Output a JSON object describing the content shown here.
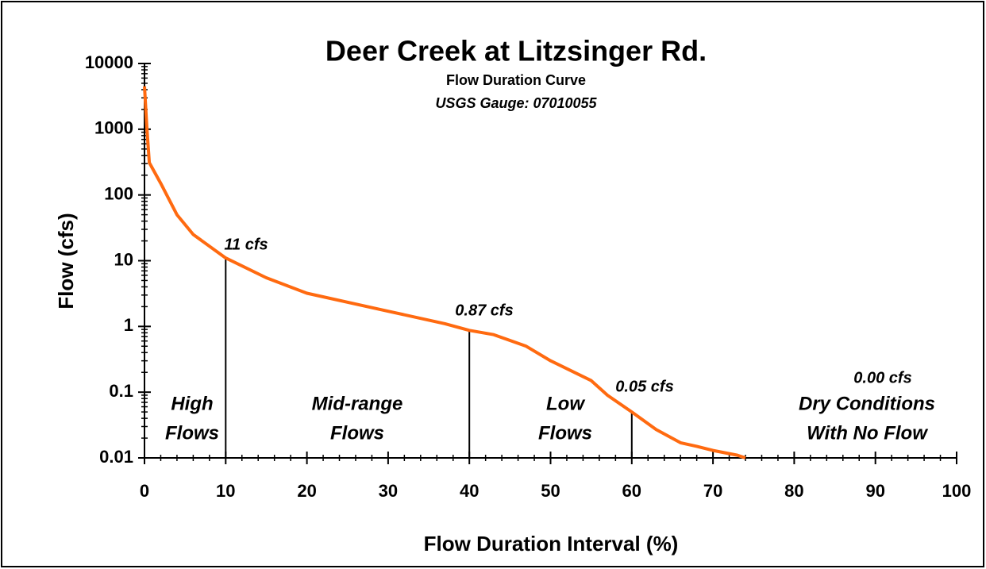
{
  "chart_data": {
    "type": "line",
    "title": "Deer Creek at Litzsinger Rd.",
    "subtitle": "Flow Duration Curve",
    "subtitle2": "USGS Gauge: 07010055",
    "xlabel": "Flow Duration Interval (%)",
    "ylabel": "Flow (cfs)",
    "log_y": true,
    "xlim": [
      0,
      100
    ],
    "xticks": [
      0,
      10,
      20,
      30,
      40,
      50,
      60,
      70,
      80,
      90,
      100
    ],
    "ylim": [
      0.01,
      10000
    ],
    "yticks": [
      0.01,
      0.1,
      1,
      10,
      100,
      1000,
      10000
    ],
    "series": [
      {
        "color": "#ff6a10",
        "x": [
          0,
          0.3,
          0.6,
          2,
          4,
          6,
          10,
          15,
          20,
          30,
          37,
          40,
          43,
          47,
          50,
          55,
          57,
          60,
          63,
          66,
          68,
          70,
          73,
          74
        ],
        "values": [
          4500,
          1000,
          310,
          150,
          50,
          25,
          11,
          5.5,
          3.2,
          1.7,
          1.1,
          0.87,
          0.75,
          0.5,
          0.3,
          0.15,
          0.09,
          0.05,
          0.027,
          0.017,
          0.015,
          0.013,
          0.011,
          0.01
        ]
      }
    ],
    "markers": [
      {
        "x": 10,
        "value": 11,
        "label": "11 cfs"
      },
      {
        "x": 40,
        "value": 0.87,
        "label": "0.87 cfs"
      },
      {
        "x": 60,
        "value": 0.05,
        "label": "0.05 cfs"
      }
    ],
    "annotations": [
      "0.00 cfs"
    ],
    "zones": [
      {
        "lines": [
          "High",
          "Flows"
        ]
      },
      {
        "lines": [
          "Mid-range",
          "Flows"
        ]
      },
      {
        "lines": [
          "Low",
          "Flows"
        ]
      },
      {
        "lines": [
          "Dry Conditions",
          "With No Flow"
        ]
      }
    ]
  }
}
